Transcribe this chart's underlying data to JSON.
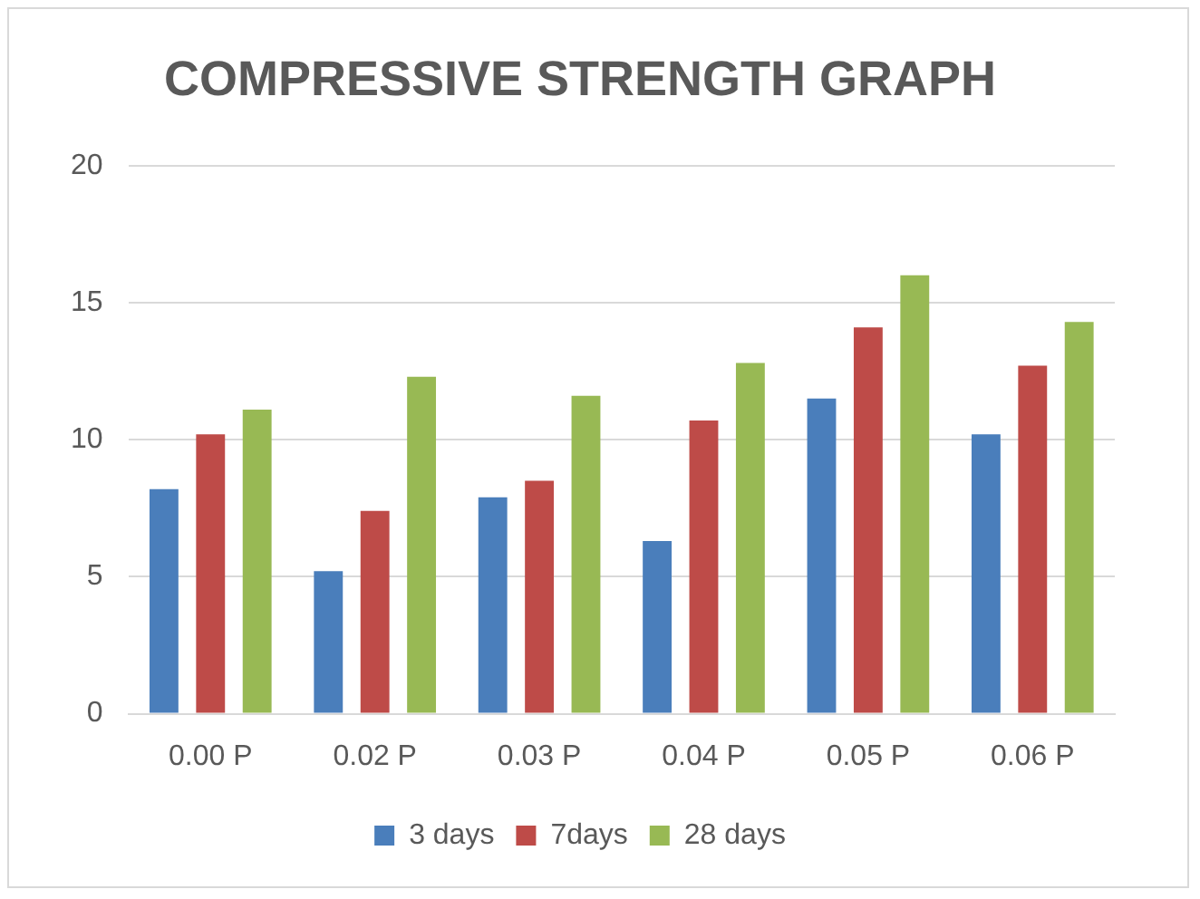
{
  "chart_data": {
    "type": "bar",
    "title": "COMPRESSIVE STRENGTH GRAPH",
    "categories": [
      "0.00 P",
      "0.02 P",
      "0.03 P",
      "0.04 P",
      "0.05 P",
      "0.06 P"
    ],
    "series": [
      {
        "name": "3 days",
        "color": "#4a7ebb",
        "values": [
          8.2,
          5.2,
          7.9,
          6.3,
          11.5,
          10.2
        ]
      },
      {
        "name": "7days",
        "color": "#be4b48",
        "values": [
          10.2,
          7.4,
          8.5,
          10.7,
          14.1,
          12.7
        ]
      },
      {
        "name": "28 days",
        "color": "#98b954",
        "values": [
          11.1,
          12.3,
          11.6,
          12.8,
          16.0,
          14.3
        ]
      }
    ],
    "ylim": [
      0,
      20
    ],
    "yticks": [
      0,
      5,
      10,
      15,
      20
    ],
    "grid": "y",
    "legend": "bottom"
  }
}
